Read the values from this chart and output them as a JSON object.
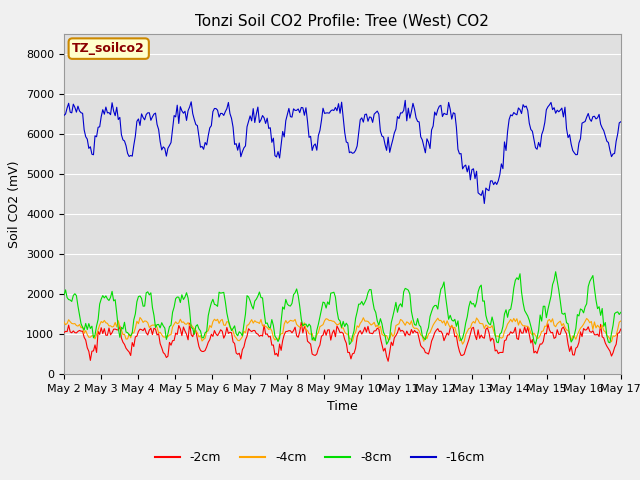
{
  "title": "Tonzi Soil CO2 Profile: Tree (West) CO2",
  "ylabel": "Soil CO2 (mV)",
  "xlabel": "Time",
  "legend_label": "TZ_soilco2",
  "series_labels": [
    "-2cm",
    "-4cm",
    "-8cm",
    "-16cm"
  ],
  "series_colors": [
    "#ff0000",
    "#ffa500",
    "#00dd00",
    "#0000cc"
  ],
  "ylim": [
    0,
    8500
  ],
  "yticks": [
    0,
    1000,
    2000,
    3000,
    4000,
    5000,
    6000,
    7000,
    8000
  ],
  "background_color": "#e0e0e0",
  "fig_background": "#f0f0f0",
  "title_fontsize": 11,
  "axis_label_fontsize": 9,
  "tick_fontsize": 8,
  "legend_fontsize": 9
}
